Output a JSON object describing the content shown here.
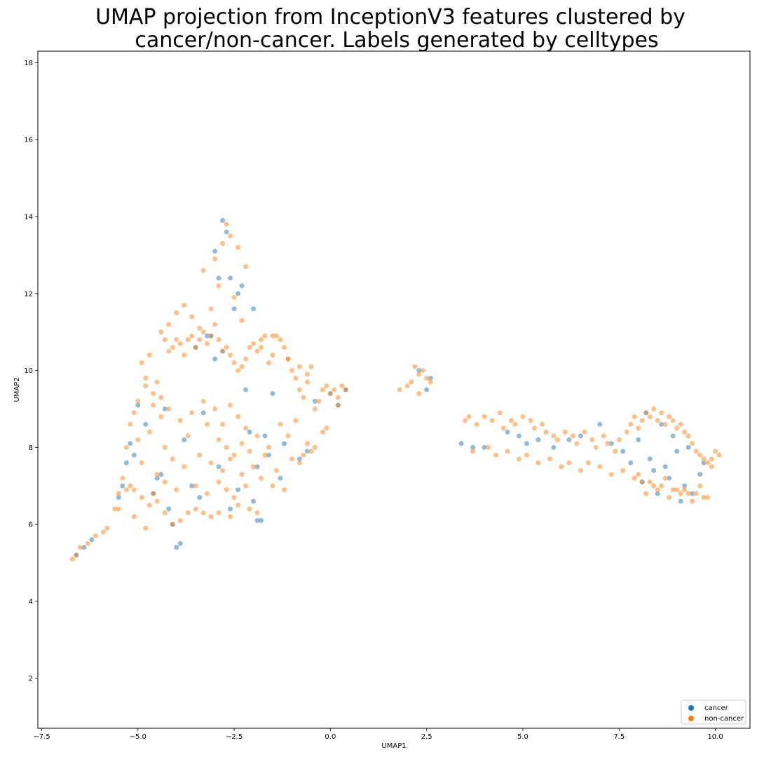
{
  "chart_data": {
    "type": "scatter",
    "title_lines": [
      "UMAP projection from InceptionV3 features clustered by",
      "cancer/non-cancer. Labels generated by celltypes"
    ],
    "xlabel": "UMAP1",
    "ylabel": "UMAP2",
    "xlim": [
      -7.6,
      10.9
    ],
    "ylim": [
      0.7,
      18.3
    ],
    "xticks": [
      -7.5,
      -5.0,
      -2.5,
      0.0,
      2.5,
      5.0,
      7.5,
      10.0
    ],
    "xtick_labels": [
      "−7.5",
      "−5.0",
      "−2.5",
      "0.0",
      "2.5",
      "5.0",
      "7.5",
      "10.0"
    ],
    "yticks": [
      2,
      4,
      6,
      8,
      10,
      12,
      14,
      16,
      18
    ],
    "ytick_labels": [
      "2",
      "4",
      "6",
      "8",
      "10",
      "12",
      "14",
      "16",
      "18"
    ],
    "grid": false,
    "legend_position": "lower-right",
    "marker_alpha": 0.5,
    "series": [
      {
        "name": "cancer",
        "color": "#1f77b4",
        "x": [
          -2.8,
          -2.7,
          -2.9,
          -2.6,
          -3.0,
          -2.4,
          -2.3,
          -2.5,
          -3.1,
          -1.9,
          -1.8,
          -1.9,
          -2.0,
          -4.0,
          -4.1,
          -3.9,
          -4.2,
          -5.5,
          -5.4,
          -5.3,
          -5.2,
          -5.0,
          -4.8,
          -4.5,
          -3.5,
          -3.2,
          -3.0,
          -2.8,
          -2.2,
          -1.5,
          -1.2,
          -0.8,
          -0.6,
          -0.4,
          0.0,
          0.2,
          0.4,
          -3.6,
          -3.4,
          -2.9,
          -2.1,
          -1.7,
          -1.3,
          -4.4,
          -4.6,
          -5.1,
          -3.3,
          -2.6,
          -2.0,
          2.3,
          2.5,
          2.6,
          3.4,
          3.7,
          4.0,
          4.6,
          4.9,
          5.1,
          5.4,
          5.8,
          6.2,
          6.5,
          7.0,
          7.3,
          7.8,
          8.0,
          8.2,
          8.4,
          8.6,
          8.8,
          9.0,
          9.2,
          9.4,
          9.6,
          8.3,
          8.5,
          8.9,
          9.1,
          7.6,
          8.1,
          8.7,
          9.3,
          9.7,
          -6.6,
          -6.4,
          -6.2,
          -3.8,
          -4.3,
          -2.4,
          -1.6
        ],
        "y": [
          13.9,
          13.6,
          12.4,
          12.4,
          13.1,
          12.0,
          12.2,
          11.6,
          10.9,
          6.1,
          6.1,
          7.5,
          11.6,
          5.4,
          6.0,
          5.5,
          6.4,
          6.7,
          7.0,
          7.6,
          8.1,
          9.1,
          8.6,
          7.2,
          10.6,
          10.9,
          10.3,
          10.5,
          9.5,
          9.4,
          8.1,
          7.7,
          7.9,
          9.2,
          9.4,
          9.1,
          9.5,
          7.0,
          6.7,
          7.5,
          8.4,
          8.3,
          7.2,
          7.3,
          6.8,
          7.8,
          8.9,
          6.4,
          6.6,
          10.0,
          9.5,
          9.8,
          8.1,
          8.0,
          8.0,
          8.4,
          8.3,
          8.1,
          8.2,
          8.0,
          8.2,
          8.3,
          8.6,
          8.1,
          7.6,
          8.2,
          8.9,
          7.4,
          8.6,
          7.2,
          7.9,
          7.0,
          6.8,
          7.3,
          7.7,
          6.8,
          8.3,
          6.6,
          7.9,
          7.1,
          7.5,
          8.0,
          7.6,
          5.2,
          5.4,
          5.6,
          8.2,
          9.0,
          6.9,
          7.8
        ]
      },
      {
        "name": "non-cancer",
        "color": "#ff7f0e",
        "x": [
          -6.7,
          -6.6,
          -6.5,
          -6.3,
          -6.1,
          -5.9,
          -5.8,
          -5.6,
          -5.5,
          -5.4,
          -5.3,
          -5.2,
          -5.1,
          -5.0,
          -4.9,
          -4.8,
          -4.7,
          -4.6,
          -4.5,
          -4.4,
          -4.3,
          -4.2,
          -4.1,
          -4.0,
          -3.9,
          -3.8,
          -3.7,
          -3.6,
          -3.5,
          -3.4,
          -3.3,
          -3.2,
          -3.1,
          -3.0,
          -2.9,
          -2.8,
          -2.7,
          -2.6,
          -2.5,
          -2.4,
          -2.3,
          -2.2,
          -2.1,
          -2.0,
          -1.9,
          -1.8,
          -1.7,
          -1.6,
          -1.5,
          -1.4,
          -1.3,
          -1.2,
          -1.1,
          -1.0,
          -0.9,
          -0.8,
          -0.7,
          -0.6,
          -0.5,
          -0.4,
          -0.3,
          -0.2,
          -0.1,
          0.0,
          0.1,
          0.2,
          0.3,
          0.4,
          -4.8,
          -4.6,
          -4.4,
          -4.2,
          -3.9,
          -3.6,
          -3.3,
          -3.0,
          -2.8,
          -2.6,
          -2.4,
          -2.2,
          -5.0,
          -4.7,
          -4.3,
          -3.7,
          -3.2,
          -2.9,
          -2.7,
          -2.5,
          -2.3,
          -2.1,
          -1.9,
          -1.6,
          -1.3,
          -1.1,
          -0.9,
          -0.6,
          -4.9,
          -4.5,
          -4.1,
          -3.8,
          -3.4,
          -3.1,
          -2.8,
          -2.6,
          -2.3,
          -2.0,
          -1.7,
          -1.4,
          -1.0,
          -0.7,
          -0.4,
          -0.2,
          -5.2,
          -5.1,
          -4.9,
          -4.6,
          -4.3,
          -4.0,
          -3.5,
          -3.2,
          -2.9,
          -2.7,
          -2.5,
          -2.2,
          -1.8,
          -1.5,
          -1.2,
          -0.8,
          -0.5,
          -0.1,
          0.2,
          -3.3,
          -3.0,
          -2.8,
          -2.6,
          -2.4,
          -2.2,
          -2.7,
          -2.9,
          -2.5,
          -3.1,
          -2.3,
          -3.4,
          -3.6,
          -3.8,
          -4.0,
          -4.2,
          -4.4,
          -1.8,
          -1.5,
          -1.1,
          -0.8,
          -0.6,
          -3.9,
          -3.7,
          -3.5,
          -3.3,
          -3.1,
          -2.9,
          -2.6,
          -2.4,
          -2.1,
          -1.9,
          -4.1,
          -4.3,
          -4.5,
          -4.7,
          -5.3,
          -5.5,
          -5.1,
          -4.8,
          1.8,
          2.0,
          2.1,
          2.2,
          2.3,
          2.4,
          2.5,
          2.6,
          2.3,
          3.5,
          3.6,
          3.8,
          4.0,
          4.2,
          4.4,
          4.5,
          4.7,
          4.8,
          5.0,
          5.2,
          5.3,
          5.5,
          5.6,
          5.8,
          5.9,
          6.1,
          6.3,
          6.4,
          6.6,
          6.8,
          6.9,
          7.1,
          7.2,
          7.4,
          7.5,
          7.7,
          7.8,
          7.9,
          8.0,
          8.1,
          8.2,
          8.3,
          8.4,
          8.5,
          8.6,
          8.7,
          8.8,
          8.9,
          9.0,
          9.1,
          9.2,
          9.3,
          9.4,
          9.5,
          9.6,
          9.7,
          9.8,
          9.9,
          10.0,
          10.1,
          3.7,
          4.1,
          4.3,
          4.6,
          4.9,
          5.1,
          5.4,
          5.7,
          6.0,
          6.2,
          6.5,
          6.7,
          7.0,
          7.3,
          7.6,
          7.9,
          8.1,
          8.4,
          8.7,
          9.0,
          9.3,
          9.6,
          9.9,
          8.2,
          8.5,
          8.8,
          9.1,
          9.4,
          9.7,
          8.0,
          8.3,
          8.6,
          8.9,
          9.2,
          9.5,
          9.8
        ],
        "y": [
          5.1,
          5.2,
          5.4,
          5.5,
          5.7,
          5.8,
          5.9,
          6.4,
          6.8,
          7.2,
          8.0,
          8.6,
          8.9,
          9.2,
          10.2,
          9.8,
          10.4,
          9.4,
          9.7,
          9.3,
          10.8,
          10.5,
          10.6,
          10.8,
          10.7,
          10.4,
          10.8,
          10.9,
          10.6,
          10.8,
          11.0,
          10.7,
          10.9,
          11.2,
          10.8,
          10.5,
          10.6,
          10.4,
          10.2,
          10.0,
          10.1,
          10.3,
          10.6,
          10.7,
          10.5,
          10.8,
          10.9,
          10.2,
          10.4,
          10.9,
          10.8,
          10.6,
          10.3,
          10.0,
          9.8,
          9.5,
          9.3,
          9.7,
          10.1,
          9.0,
          9.2,
          9.5,
          9.6,
          9.4,
          9.5,
          9.3,
          9.6,
          9.5,
          9.6,
          9.1,
          8.8,
          9.0,
          8.7,
          8.9,
          9.2,
          9.0,
          8.6,
          9.1,
          8.8,
          8.5,
          8.2,
          8.4,
          8.0,
          8.3,
          8.6,
          8.2,
          8.0,
          7.8,
          8.1,
          7.9,
          8.3,
          8.0,
          8.6,
          8.3,
          8.7,
          8.1,
          7.6,
          7.3,
          7.7,
          7.5,
          7.8,
          7.6,
          7.4,
          7.7,
          7.3,
          7.5,
          7.8,
          7.4,
          7.7,
          7.8,
          8.0,
          8.4,
          7.0,
          6.9,
          6.7,
          6.8,
          7.1,
          6.9,
          7.0,
          6.8,
          7.1,
          6.9,
          6.7,
          7.0,
          7.2,
          7.0,
          6.9,
          7.6,
          7.9,
          8.5,
          9.1,
          12.6,
          12.9,
          13.3,
          13.5,
          13.2,
          12.7,
          13.8,
          12.2,
          11.9,
          11.6,
          11.3,
          11.1,
          11.4,
          11.7,
          11.5,
          11.2,
          11.0,
          10.6,
          10.9,
          10.3,
          10.1,
          9.9,
          6.1,
          6.3,
          6.4,
          6.3,
          6.2,
          6.3,
          6.2,
          6.5,
          6.4,
          6.3,
          6.0,
          6.3,
          6.6,
          6.5,
          6.9,
          6.4,
          6.2,
          5.9,
          9.5,
          9.6,
          9.7,
          10.1,
          9.9,
          10.0,
          9.8,
          9.7,
          9.4,
          8.7,
          8.8,
          8.6,
          8.8,
          8.7,
          8.9,
          8.5,
          8.7,
          8.6,
          8.8,
          8.7,
          8.5,
          8.6,
          8.4,
          8.3,
          8.2,
          8.4,
          8.3,
          8.1,
          8.4,
          8.2,
          8.0,
          8.3,
          8.1,
          7.9,
          8.2,
          8.4,
          8.6,
          8.8,
          8.5,
          8.7,
          8.9,
          8.8,
          9.0,
          8.7,
          8.9,
          8.6,
          8.8,
          8.7,
          8.5,
          8.6,
          8.4,
          8.3,
          8.1,
          7.9,
          7.8,
          7.7,
          7.6,
          7.7,
          7.9,
          7.8,
          7.9,
          8.0,
          7.8,
          7.9,
          7.7,
          7.8,
          7.6,
          7.7,
          7.5,
          7.6,
          7.4,
          7.6,
          7.5,
          7.3,
          7.4,
          7.2,
          7.1,
          7.0,
          7.2,
          6.9,
          6.8,
          7.0,
          7.5,
          6.8,
          6.9,
          6.7,
          6.8,
          6.6,
          6.7,
          7.3,
          7.1,
          7.0,
          6.9,
          6.9,
          6.8,
          6.7
        ]
      }
    ]
  }
}
